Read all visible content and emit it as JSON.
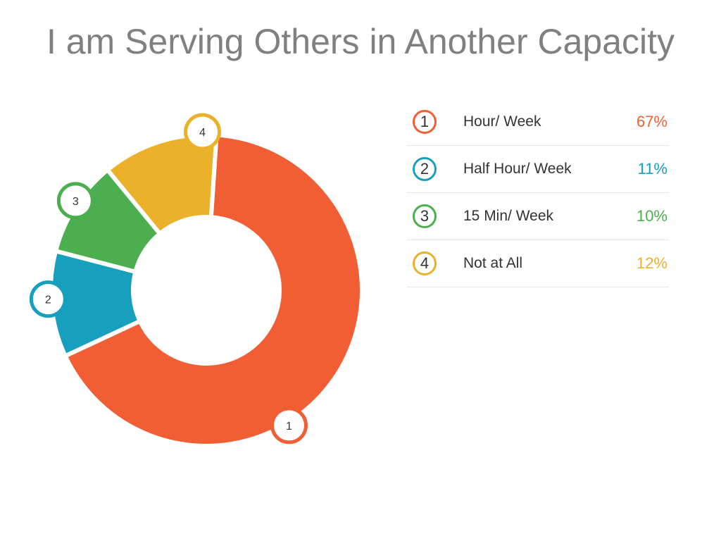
{
  "title": "I am Serving Others in Another Capacity",
  "colors": {
    "s1": "#F15E33",
    "s2": "#179FBE",
    "s3": "#4BAF4F",
    "s4": "#EBB12A"
  },
  "chart_data": {
    "type": "pie",
    "title": "I am Serving Others in Another Capacity",
    "series": [
      {
        "number": "1",
        "label": "Hour/ Week",
        "value": 67,
        "display": "67%",
        "color": "#F15E33"
      },
      {
        "number": "2",
        "label": "Half Hour/ Week",
        "value": 11,
        "display": "11%",
        "color": "#179FBE"
      },
      {
        "number": "3",
        "label": "15 Min/ Week",
        "value": 10,
        "display": "10%",
        "color": "#4BAF4F"
      },
      {
        "number": "4",
        "label": "Not at All",
        "value": 12,
        "display": "12%",
        "color": "#EBB12A"
      }
    ],
    "legend_position": "right"
  }
}
